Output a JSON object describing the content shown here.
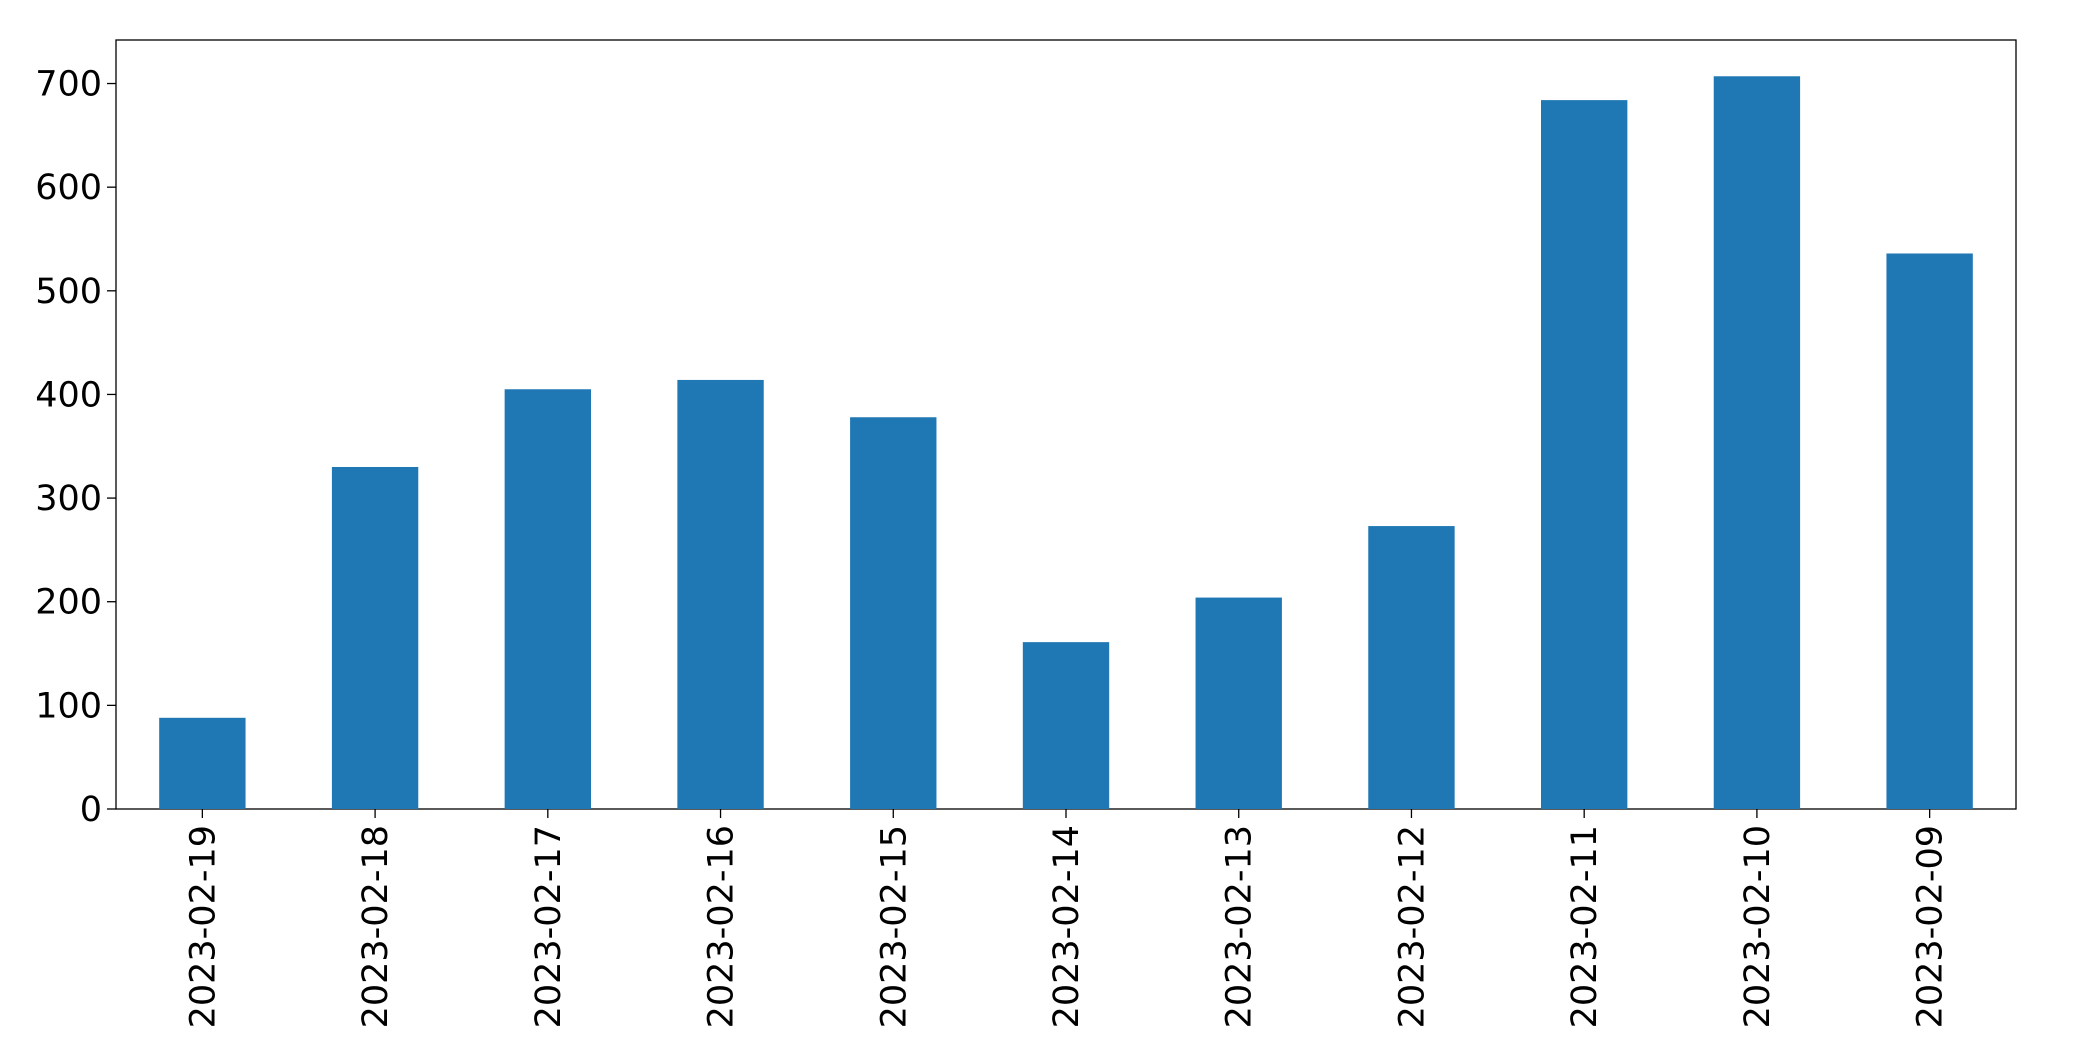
{
  "chart_data": {
    "type": "bar",
    "categories": [
      "2023-02-19",
      "2023-02-18",
      "2023-02-17",
      "2023-02-16",
      "2023-02-15",
      "2023-02-14",
      "2023-02-13",
      "2023-02-12",
      "2023-02-11",
      "2023-02-10",
      "2023-02-09"
    ],
    "values": [
      88,
      330,
      405,
      414,
      378,
      161,
      204,
      273,
      684,
      707,
      536
    ],
    "color": "#1f77b4",
    "ylim": [
      0,
      742
    ],
    "yticks": [
      0,
      100,
      200,
      300,
      400,
      500,
      600,
      700
    ],
    "grid": false
  }
}
